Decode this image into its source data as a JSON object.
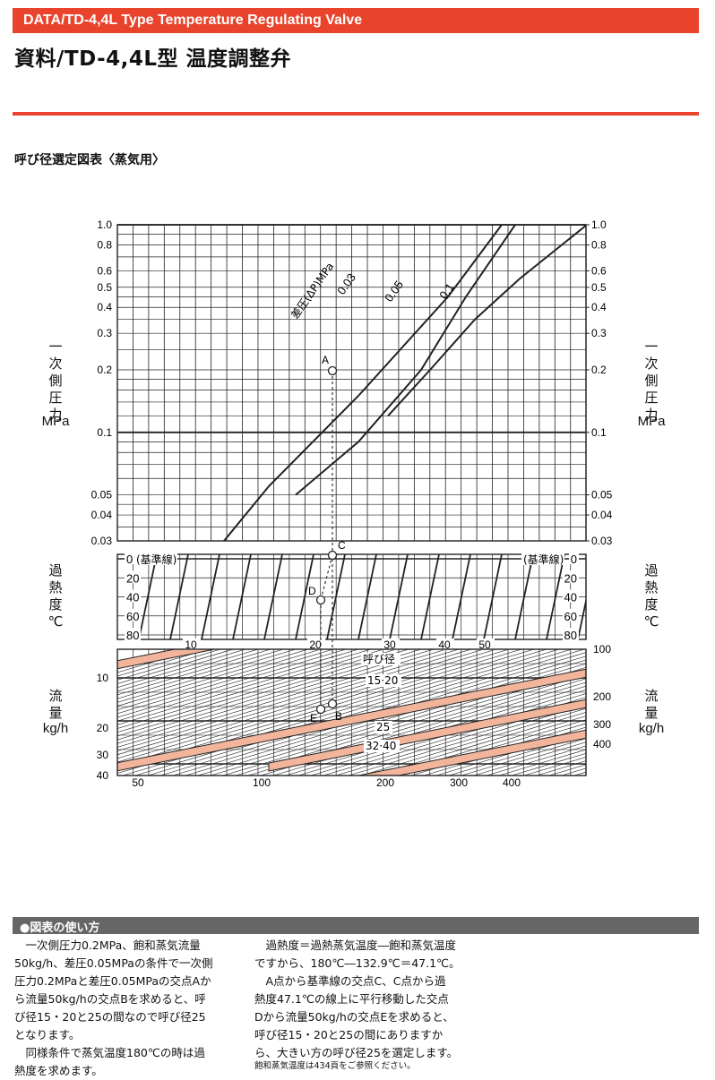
{
  "header": {
    "bar_text": "DATA/TD-4,4L Type Temperature Regulating Valve",
    "title": "資料/TD-4,4L型  温度調整弁"
  },
  "section": {
    "heading": "呼び径選定図表〈蒸気用〉"
  },
  "colors": {
    "accent": "#e9432c",
    "band": "#f2b59c",
    "grid": "#222222",
    "usage_bar": "#666666"
  },
  "chart_data": [
    {
      "type": "line",
      "panel": "pressure",
      "ylabel": [
        "一",
        "次",
        "側",
        "圧",
        "力"
      ],
      "yunit": "MPa",
      "yscale": "log",
      "ylim": [
        0.03,
        1.0
      ],
      "yticks": [
        "1.0",
        "0.8",
        "0.6",
        "0.5",
        "0.4",
        "0.3",
        "0.2",
        "0.1",
        "0.05",
        "0.04",
        "0.03"
      ],
      "grid": true,
      "curve_group_label": "差圧(ΔP)MPa",
      "series": [
        {
          "name": "0.03",
          "x": [
            250,
            300,
            400,
            500,
            560
          ],
          "y": [
            0.03,
            0.055,
            0.15,
            0.45,
            1.0
          ]
        },
        {
          "name": "0.05",
          "x": [
            330,
            400,
            470,
            520,
            575
          ],
          "y": [
            0.05,
            0.09,
            0.2,
            0.45,
            1.0
          ]
        },
        {
          "name": "0.1",
          "x": [
            433,
            480,
            530,
            580,
            655
          ],
          "y": [
            0.12,
            0.2,
            0.35,
            0.55,
            1.0
          ]
        }
      ],
      "points": [
        {
          "label": "A",
          "value": 0.2
        }
      ]
    },
    {
      "type": "line",
      "panel": "superheat",
      "ylabel": [
        "過",
        "熱",
        "度"
      ],
      "yunit": "℃",
      "ylim": [
        0,
        80
      ],
      "yticks": [
        "0",
        "20",
        "40",
        "60",
        "80"
      ],
      "baseline_label": "(基準線)",
      "grid": true,
      "points": [
        {
          "label": "C",
          "value": 0
        },
        {
          "label": "D",
          "value": 47.1
        }
      ]
    },
    {
      "type": "line",
      "panel": "flow",
      "ylabel": [
        "流",
        "量"
      ],
      "yunit": "kg/h",
      "left_ticks": [
        "10",
        "20",
        "30",
        "40"
      ],
      "right_ticks": [
        "100",
        "200",
        "300",
        "400"
      ],
      "bottom_ticks": [
        "50",
        "100",
        "200",
        "300",
        "400"
      ],
      "superheat_axis_ticks": [
        "10",
        "20",
        "30",
        "40",
        "50"
      ],
      "nominal_diameter_label": "呼び径",
      "bands": [
        {
          "name": "15·20"
        },
        {
          "name": "25"
        },
        {
          "name": "32·40"
        }
      ],
      "points": [
        {
          "label": "B",
          "value": 50
        },
        {
          "label": "E",
          "value": 50
        }
      ]
    }
  ],
  "usage": {
    "title": "●図表の使い方",
    "left_lines": [
      "　一次側圧力0.2MPa、飽和蒸気流量",
      "50kg/h、差圧0.05MPaの条件で一次側",
      "圧力0.2MPaと差圧0.05MPaの交点Aか",
      "ら流量50kg/hの交点Bを求めると、呼",
      "び径15・20と25の間なので呼び径25",
      "となります。",
      "　同様条件で蒸気温度180℃の時は過",
      "熱度を求めます。"
    ],
    "right_lines": [
      "　過熱度＝過熱蒸気温度―飽和蒸気温度",
      "ですから、180℃―132.9℃＝47.1℃。",
      "　A点から基準線の交点C、C点から過",
      "熱度47.1℃の線上に平行移動した交点",
      "Dから流量50kg/hの交点Eを求めると、",
      "呼び径15・20と25の間にありますか",
      "ら、大きい方の呼び径25を選定します。"
    ],
    "footnote": "飽和蒸気温度は434頁をご参照ください。"
  }
}
